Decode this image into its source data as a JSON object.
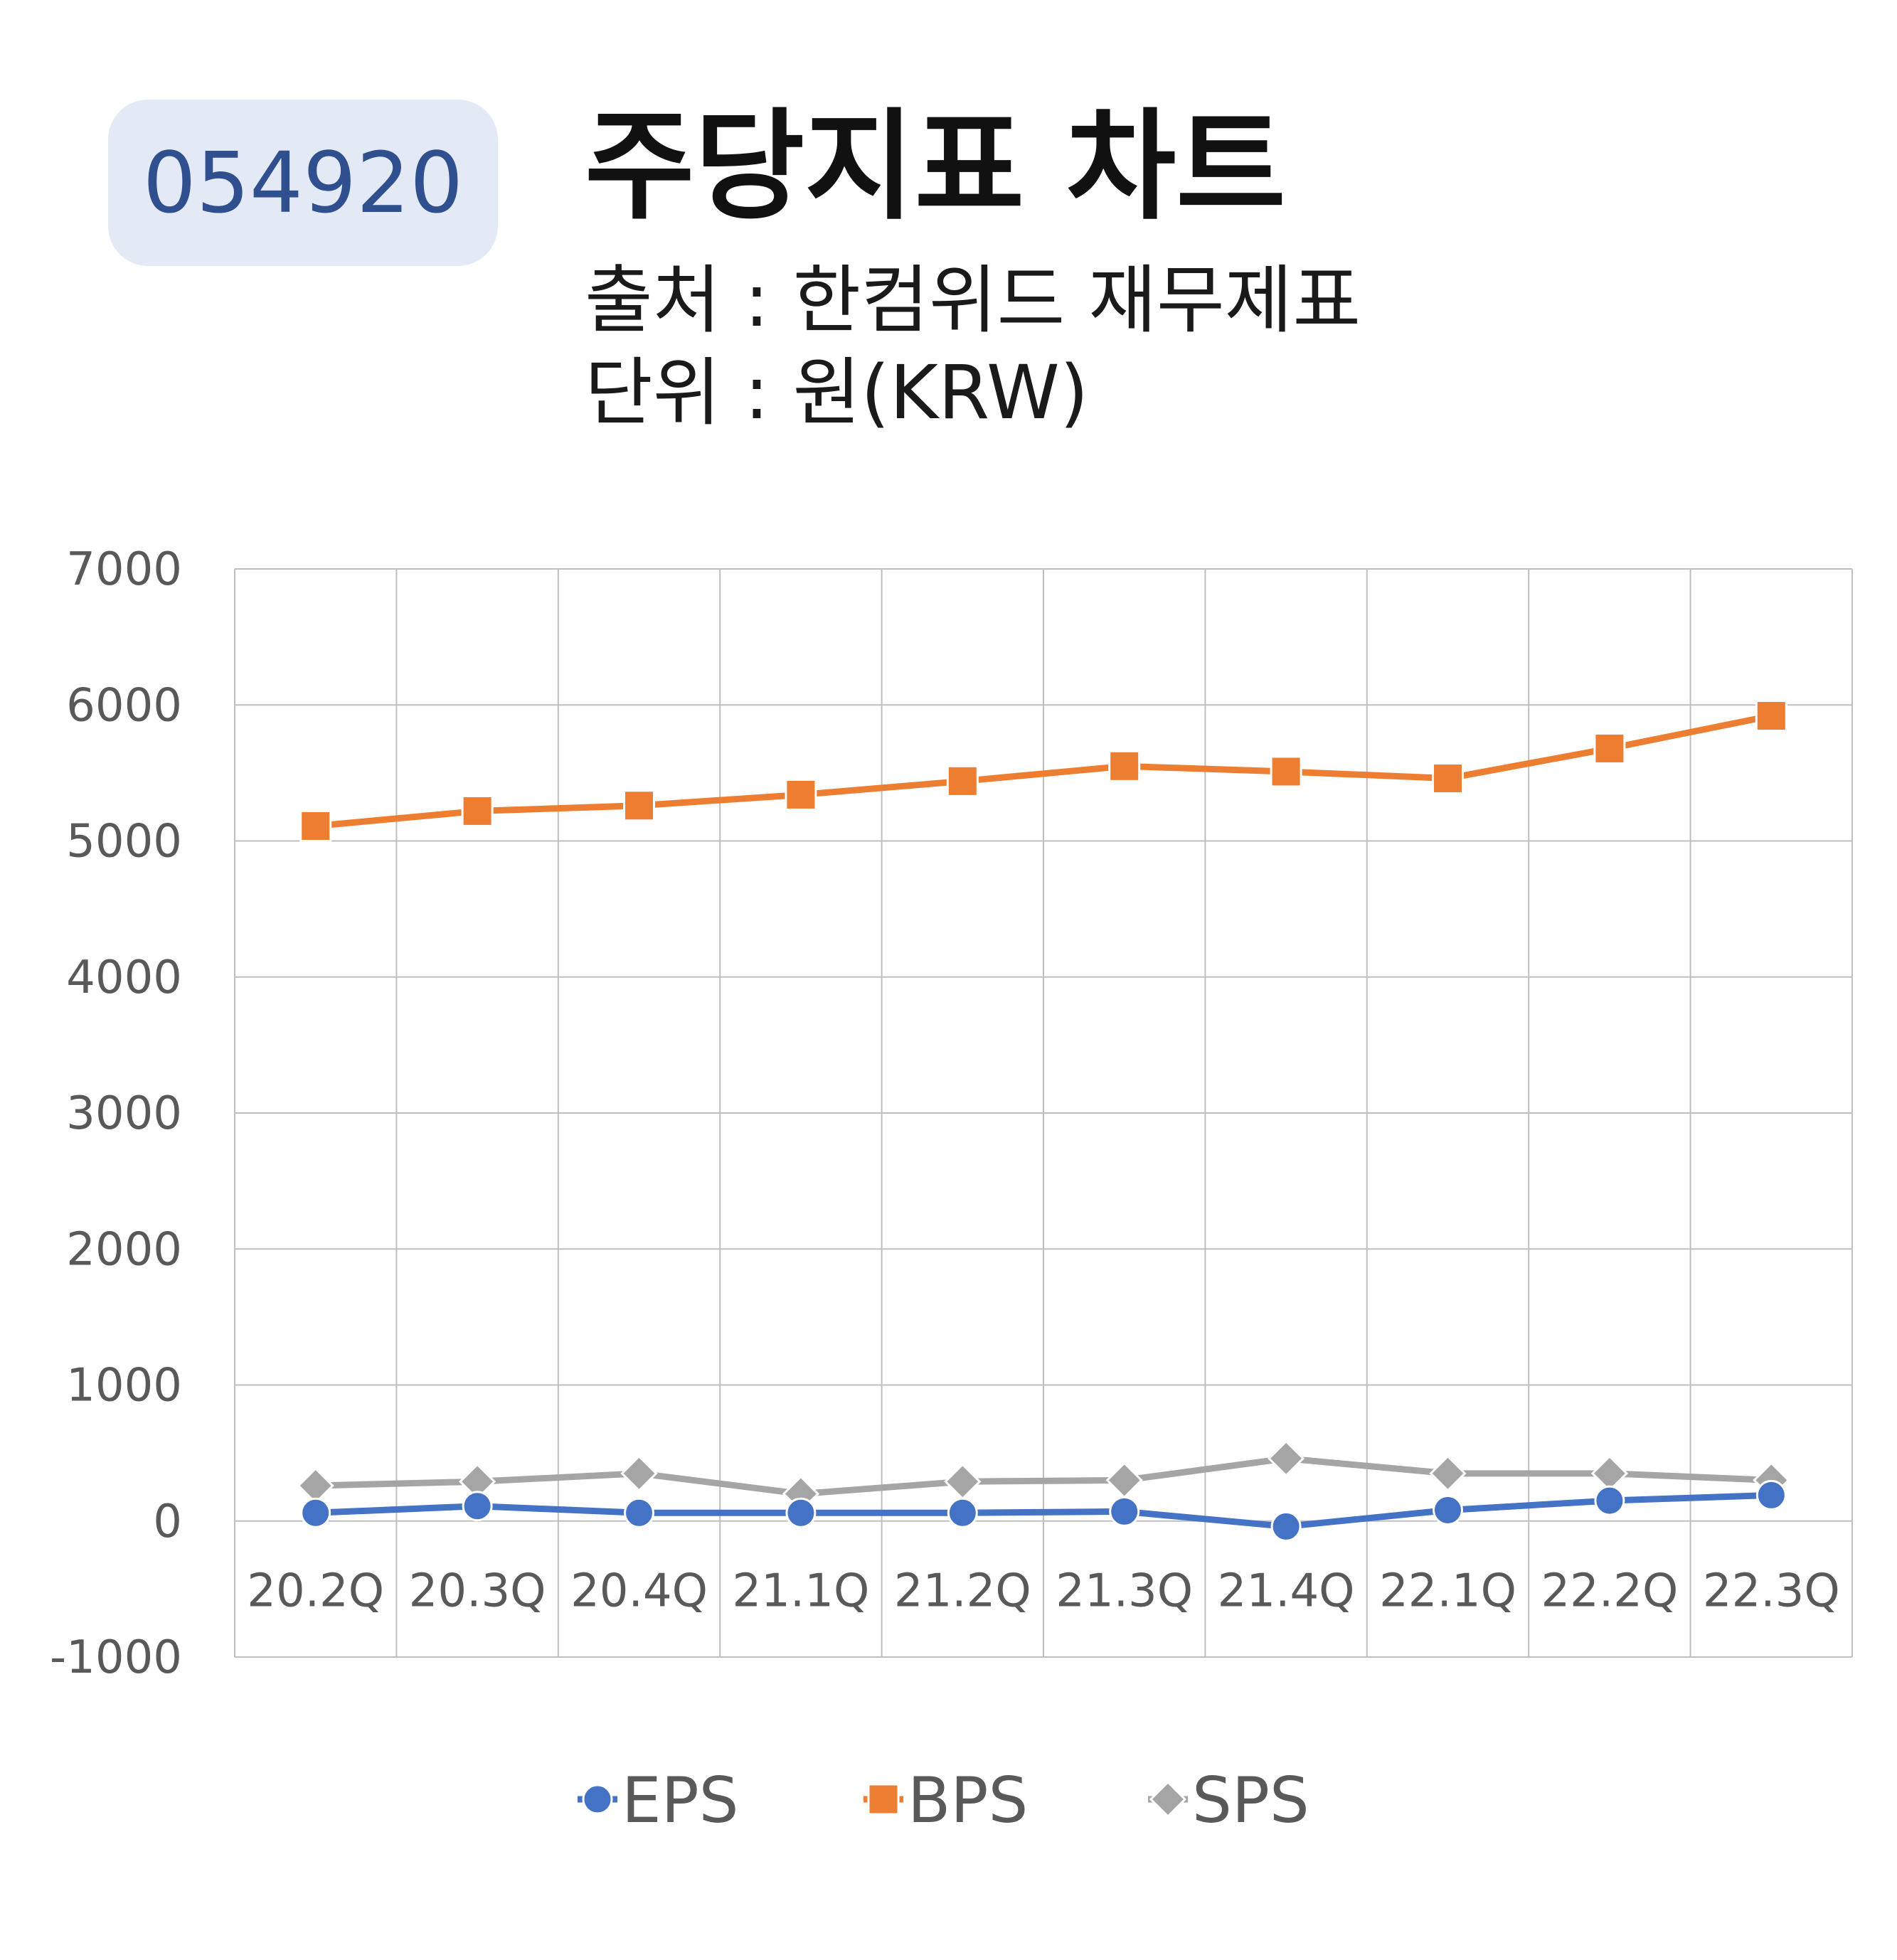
{
  "header": {
    "code": "054920",
    "title": "주당지표 차트",
    "source": "출처 : 한컴위드 재무제표",
    "unit": "단위 : 원(KRW)"
  },
  "chart_data": {
    "type": "line",
    "categories": [
      "20.2Q",
      "20.3Q",
      "20.4Q",
      "21.1Q",
      "21.2Q",
      "21.3Q",
      "21.4Q",
      "22.1Q",
      "22.2Q",
      "22.3Q"
    ],
    "ylim": [
      -1000,
      7000
    ],
    "yticks": [
      "7000",
      "6000",
      "5000",
      "4000",
      "3000",
      "2000",
      "1000",
      "0",
      "-1000"
    ],
    "grid": true,
    "legend_position": "bottom",
    "series": [
      {
        "name": "EPS",
        "color": "#4472c4",
        "marker": "circle",
        "values": [
          60,
          110,
          60,
          60,
          60,
          70,
          -40,
          80,
          150,
          190
        ]
      },
      {
        "name": "BPS",
        "color": "#ed7d31",
        "marker": "square",
        "values": [
          5110,
          5220,
          5260,
          5340,
          5440,
          5550,
          5510,
          5460,
          5680,
          5920
        ]
      },
      {
        "name": "SPS",
        "color": "#a5a5a5",
        "marker": "diamond",
        "values": [
          260,
          290,
          350,
          200,
          290,
          300,
          460,
          350,
          350,
          300
        ]
      }
    ]
  }
}
